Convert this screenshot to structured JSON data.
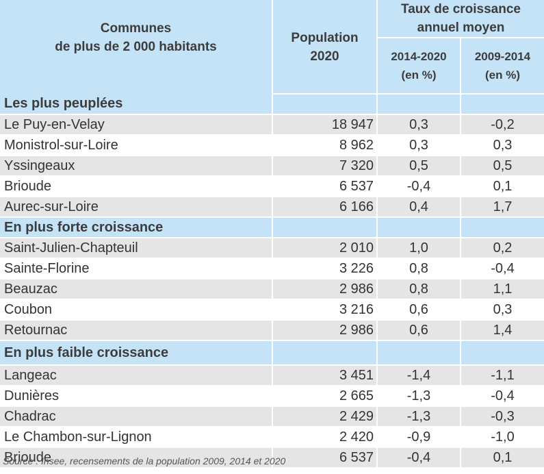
{
  "header": {
    "communes": "Communes\nde plus de 2 000 habitants",
    "communes_line1": "Communes",
    "communes_line2": "de plus de 2 000 habitants",
    "population_line1": "Population",
    "population_line2": "2020",
    "growth_line1": "Taux de croissance",
    "growth_line2": "annuel moyen",
    "period1_line1": "2014-2020",
    "period1_line2": "(en %)",
    "period2_line1": "2009-2014",
    "period2_line2": "(en %)"
  },
  "sections": [
    {
      "title": "Les plus peuplées",
      "rows": [
        {
          "name": "Le Puy-en-Velay",
          "population": "18 947",
          "rate_2014_2020": "0,3",
          "rate_2009_2014": "-0,2"
        },
        {
          "name": "Monistrol-sur-Loire",
          "population": "8 962",
          "rate_2014_2020": "0,3",
          "rate_2009_2014": "0,3"
        },
        {
          "name": "Yssingeaux",
          "population": "7 320",
          "rate_2014_2020": "0,5",
          "rate_2009_2014": "0,5"
        },
        {
          "name": "Brioude",
          "population": "6 537",
          "rate_2014_2020": "-0,4",
          "rate_2009_2014": "0,1"
        },
        {
          "name": "Aurec-sur-Loire",
          "population": "6 166",
          "rate_2014_2020": "0,4",
          "rate_2009_2014": "1,7"
        }
      ]
    },
    {
      "title": "En plus forte croissance",
      "rows": [
        {
          "name": "Saint-Julien-Chapteuil",
          "population": "2 010",
          "rate_2014_2020": "1,0",
          "rate_2009_2014": "0,2"
        },
        {
          "name": "Sainte-Florine",
          "population": "3 226",
          "rate_2014_2020": "0,8",
          "rate_2009_2014": "-0,4"
        },
        {
          "name": "Beauzac",
          "population": "2 986",
          "rate_2014_2020": "0,8",
          "rate_2009_2014": "1,1"
        },
        {
          "name": "Coubon",
          "population": "3 216",
          "rate_2014_2020": "0,6",
          "rate_2009_2014": "0,3"
        },
        {
          "name": "Retournac",
          "population": "2 986",
          "rate_2014_2020": "0,6",
          "rate_2009_2014": "1,4"
        }
      ]
    },
    {
      "title": "En plus faible croissance",
      "rows": [
        {
          "name": "Langeac",
          "population": "3 451",
          "rate_2014_2020": "-1,4",
          "rate_2009_2014": "-1,1"
        },
        {
          "name": "Dunières",
          "population": "2 665",
          "rate_2014_2020": "-1,3",
          "rate_2009_2014": "-0,4"
        },
        {
          "name": "Chadrac",
          "population": "2 429",
          "rate_2014_2020": "-1,3",
          "rate_2009_2014": "-0,3"
        },
        {
          "name": "Le Chambon-sur-Lignon",
          "population": "2 420",
          "rate_2014_2020": "-0,9",
          "rate_2009_2014": "-1,0"
        },
        {
          "name": "Brioude",
          "population": "6 537",
          "rate_2014_2020": "-0,4",
          "rate_2009_2014": "0,1"
        }
      ]
    }
  ],
  "source": "Source : Insee, recensements de la population 2009, 2014 et 2020",
  "colors": {
    "header_bg": "#c5e3f7",
    "row_grey": "#e5e5e5",
    "row_white": "#ffffff",
    "text": "#333333"
  }
}
